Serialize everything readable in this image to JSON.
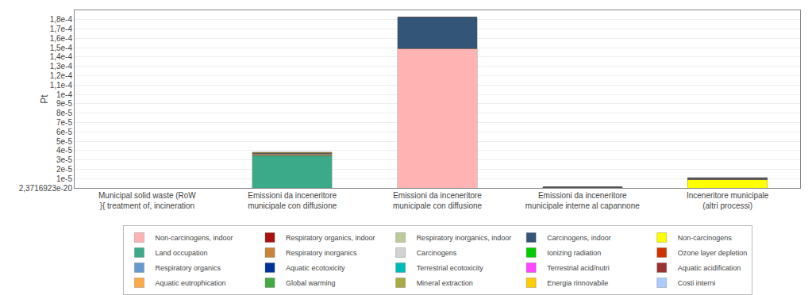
{
  "chart_data": {
    "type": "bar",
    "stacked": true,
    "ylabel": "Pt",
    "categories": [
      "Municipal solid waste (RoW\n}{ treatment of, incineration",
      "Emissioni da inceneritore\nmunicipale con diffusione",
      "Emissioni da inceneritore\nmunicipale con diffusione",
      "Emissioni da inceneritore\nmunicipale interne al capannone",
      "Inceneritore municipale\n(altri processi)"
    ],
    "series": [
      {
        "name": "Non-carcinogens, indoor",
        "color": "#ffb3b3",
        "values": [
          0,
          0,
          0.000149,
          8e-07,
          0
        ]
      },
      {
        "name": "Respiratory organics, indoor",
        "color": "#aa1111",
        "values": [
          0,
          0,
          2e-07,
          0,
          0
        ]
      },
      {
        "name": "Respiratory inorganics, indoor",
        "color": "#bbcc99",
        "values": [
          0,
          0,
          2e-07,
          0,
          0
        ]
      },
      {
        "name": "Carcinogens, indoor",
        "color": "#335577",
        "values": [
          0,
          0,
          3.3e-05,
          0,
          0
        ]
      },
      {
        "name": "Non-carcinogens",
        "color": "#ffff00",
        "values": [
          0,
          0,
          0,
          0,
          8.5e-06
        ]
      },
      {
        "name": "Land occupation",
        "color": "#3aaa88",
        "values": [
          0,
          3.45e-05,
          0,
          0,
          0
        ]
      },
      {
        "name": "Respiratory inorganics",
        "color": "#c8843c",
        "values": [
          0,
          1.5e-06,
          0,
          0,
          5e-07
        ]
      },
      {
        "name": "Carcinogens",
        "color": "#d3d3d3",
        "values": [
          0,
          3e-07,
          0,
          0,
          2e-07
        ]
      },
      {
        "name": "Ionizing radiation",
        "color": "#00cc00",
        "values": [
          0,
          2e-07,
          0,
          0,
          2e-07
        ]
      },
      {
        "name": "Ozone layer depletion",
        "color": "#cc3300",
        "values": [
          0,
          1e-07,
          0,
          0,
          1e-07
        ]
      },
      {
        "name": "Respiratory organics",
        "color": "#6699cc",
        "values": [
          0,
          2e-07,
          0,
          0,
          2e-07
        ]
      },
      {
        "name": "Aquatic ecotoxicity",
        "color": "#003399",
        "values": [
          0,
          1e-07,
          0,
          0,
          1.5e-07
        ]
      },
      {
        "name": "Terrestrial ecotoxicity",
        "color": "#00bbbb",
        "values": [
          0,
          1e-07,
          0,
          0,
          1.5e-07
        ]
      },
      {
        "name": "Terrestrial acid/nutri",
        "color": "#ff44ff",
        "values": [
          0,
          1e-07,
          0,
          0,
          1.5e-07
        ]
      },
      {
        "name": "Aquatic acidification",
        "color": "#993333",
        "values": [
          0,
          1e-07,
          0,
          0,
          1e-07
        ]
      },
      {
        "name": "Aquatic eutrophication",
        "color": "#ffaa44",
        "values": [
          0,
          1e-07,
          0,
          2e-07,
          1e-07
        ]
      },
      {
        "name": "Global warming",
        "color": "#44aa44",
        "values": [
          0,
          2e-07,
          0,
          0,
          2e-07
        ]
      },
      {
        "name": "Mineral extraction",
        "color": "#aaaa44",
        "values": [
          0,
          1e-07,
          0,
          0,
          1e-07
        ]
      },
      {
        "name": "Energia rinnovabile",
        "color": "#ffcc00",
        "values": [
          0,
          2e-07,
          0,
          0,
          3e-07
        ]
      },
      {
        "name": "Costi interni",
        "color": "#aaccff",
        "values": [
          0,
          4e-07,
          0,
          0,
          5e-07
        ]
      }
    ],
    "ylim": [
      2.3716923e-20,
      0.00019
    ],
    "yticks": [
      {
        "value": 2.3716923e-20,
        "label": "2,3716923e-20"
      },
      {
        "value": 1e-05,
        "label": "1e-5"
      },
      {
        "value": 2e-05,
        "label": "2e-5"
      },
      {
        "value": 3e-05,
        "label": "3e-5"
      },
      {
        "value": 4e-05,
        "label": "4e-5"
      },
      {
        "value": 5e-05,
        "label": "5e-5"
      },
      {
        "value": 6e-05,
        "label": "6e-5"
      },
      {
        "value": 7e-05,
        "label": "7e-5"
      },
      {
        "value": 8e-05,
        "label": "8e-5"
      },
      {
        "value": 9e-05,
        "label": "9e-5"
      },
      {
        "value": 0.0001,
        "label": "1e-4"
      },
      {
        "value": 0.00011,
        "label": "1,1e-4"
      },
      {
        "value": 0.00012,
        "label": "1,2e-4"
      },
      {
        "value": 0.00013,
        "label": "1,3e-4"
      },
      {
        "value": 0.00014,
        "label": "1,4e-4"
      },
      {
        "value": 0.00015,
        "label": "1,5e-4"
      },
      {
        "value": 0.00016,
        "label": "1,6e-4"
      },
      {
        "value": 0.00017,
        "label": "1,7e-4"
      },
      {
        "value": 0.00018,
        "label": "1,8e-4"
      }
    ],
    "grid": true,
    "legend": "bottom"
  }
}
